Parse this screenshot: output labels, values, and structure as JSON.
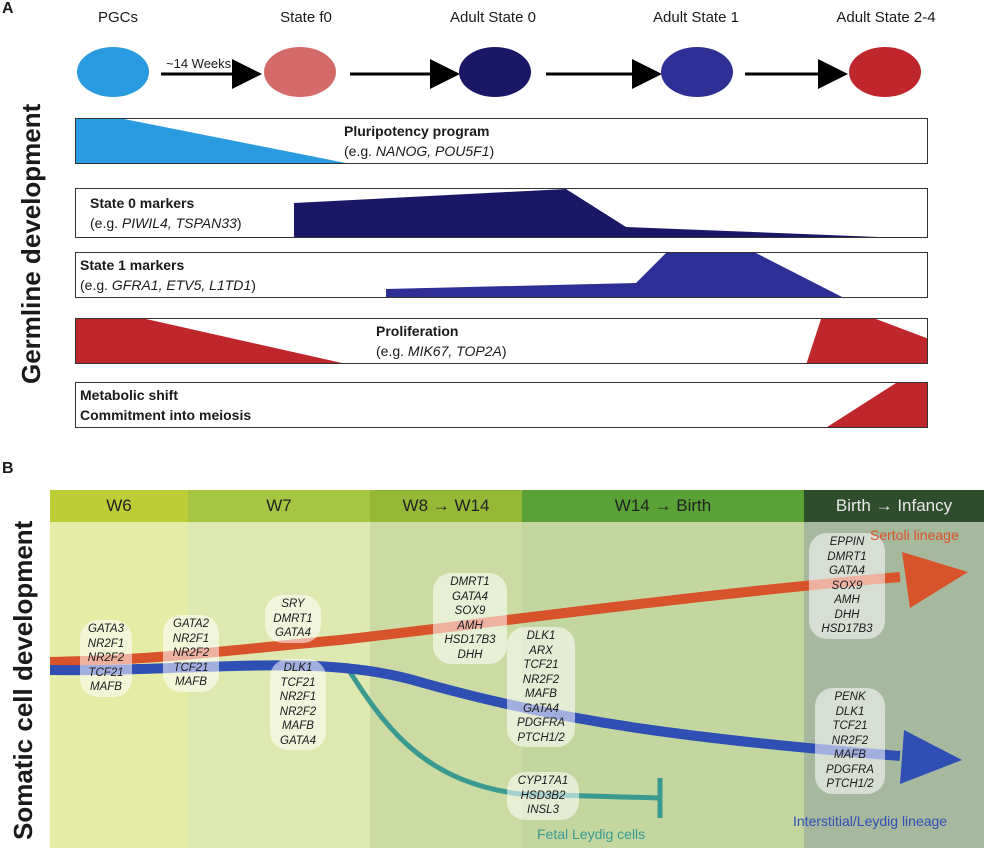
{
  "panelA": {
    "label": "A",
    "vertical_title": "Germline development",
    "stages": [
      "PGCs",
      "State f0",
      "Adult State 0",
      "Adult State 1",
      "Adult State 2-4"
    ],
    "arrow_label": "~14 Weeks",
    "colors": {
      "pgc": "#2a9be0",
      "f0": "#d46a6a",
      "s0": "#1a1866",
      "s1": "#2e2f95",
      "s24": "#c0272d"
    },
    "tracks": [
      {
        "title": "Pluripotency program",
        "example_prefix": "(e.g. ",
        "genes": "NANOG, POU5F1",
        "example_suffix": ")"
      },
      {
        "title": "State 0 markers",
        "example_prefix": "(e.g. ",
        "genes": "PIWIL4, TSPAN33",
        "example_suffix": ")"
      },
      {
        "title": "State 1 markers",
        "example_prefix": "(e.g. ",
        "genes": "GFRA1, ETV5, L1TD1",
        "example_suffix": ")"
      },
      {
        "title": "Proliferation",
        "example_prefix": "(e.g. ",
        "genes": "MIK67, TOP2A",
        "example_suffix": ")"
      },
      {
        "title": "Metabolic shift",
        "line2": "Commitment into meiosis"
      }
    ]
  },
  "panelB": {
    "label": "B",
    "vertical_title": "Somatic cell development",
    "columns": [
      {
        "label": "W6"
      },
      {
        "label": "W7"
      },
      {
        "from": "W8",
        "arrow": "→",
        "to": "W14"
      },
      {
        "from": "W14",
        "arrow": "→",
        "to": "Birth"
      },
      {
        "from": "Birth",
        "arrow": "→",
        "to": "Infancy"
      }
    ],
    "gene_sets": {
      "w6": [
        "GATA3",
        "NR2F1",
        "NR2F2",
        "TCF21",
        "MAFB"
      ],
      "w7a": [
        "GATA2",
        "NR2F1",
        "NR2F2",
        "TCF21",
        "MAFB"
      ],
      "w7_sertoli": [
        "SRY",
        "DMRT1",
        "GATA4"
      ],
      "w7_interstitial": [
        "DLK1",
        "TCF21",
        "NR2F1",
        "NR2F2",
        "MAFB",
        "GATA4"
      ],
      "w8_sertoli": [
        "DMRT1",
        "GATA4",
        "SOX9",
        "AMH",
        "HSD17B3",
        "DHH"
      ],
      "w14_interstitial": [
        "DLK1",
        "ARX",
        "TCF21",
        "NR2F2",
        "MAFB",
        "GATA4",
        "PDGFRA",
        "PTCH1/2"
      ],
      "fetal_leydig": [
        "CYP17A1",
        "HSD3B2",
        "INSL3"
      ],
      "birth_sertoli": [
        "EPPIN",
        "DMRT1",
        "GATA4",
        "SOX9",
        "AMH",
        "DHH",
        "HSD17B3"
      ],
      "birth_interstitial": [
        "PENK",
        "DLK1",
        "TCF21",
        "NR2F2",
        "MAFB",
        "PDGFRA",
        "PTCH1/2"
      ]
    },
    "lineages": {
      "sertoli": "Sertoli lineage",
      "interstitial": "Interstitial/Leydig lineage",
      "fetal_leydig": "Fetal Leydig cells"
    },
    "colors": {
      "sertoli": "#d9532a",
      "interstitial": "#2f4fb5",
      "fetal_leydig": "#3a9a8f"
    }
  }
}
